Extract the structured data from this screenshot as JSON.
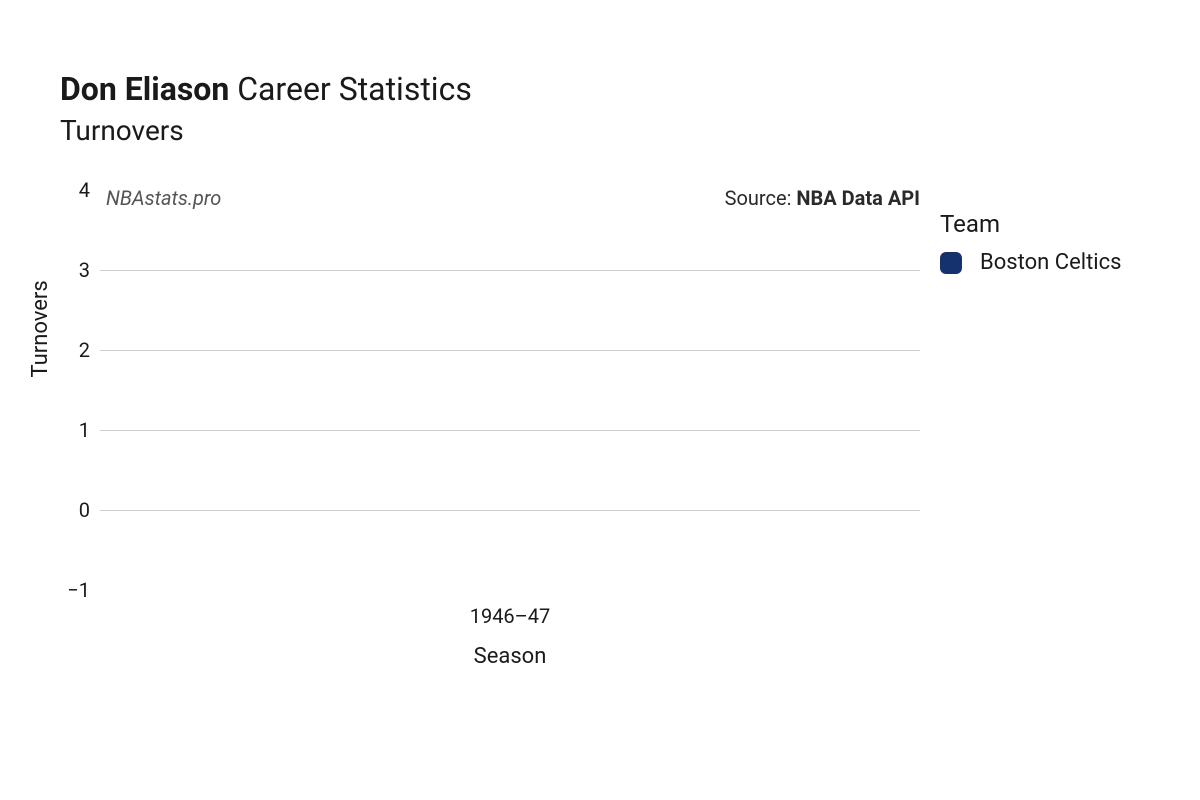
{
  "title": {
    "player_name": "Don Eliason",
    "suffix": "Career Statistics",
    "subtitle": "Turnovers",
    "fontsize_main": 32,
    "fontsize_sub": 28,
    "color": "#1a1a1a"
  },
  "chart": {
    "type": "bar",
    "watermark": "NBAstats.pro",
    "watermark_color": "#555555",
    "watermark_fontsize": 20,
    "watermark_italic": true,
    "source_prefix": "Source: ",
    "source_name": "NBA Data API",
    "source_fontsize": 20,
    "source_color": "#2a2a2a",
    "background_color": "#ffffff",
    "grid_color": "#cfcfcf",
    "axis_label_fontsize": 22,
    "tick_fontsize": 20,
    "y": {
      "label": "Turnovers",
      "min": -1,
      "max": 4,
      "ticks": [
        -1,
        0,
        1,
        2,
        3,
        4
      ],
      "tick_labels": [
        "−1",
        "0",
        "1",
        "2",
        "3",
        "4"
      ],
      "gridlines_at": [
        0,
        1,
        2,
        3
      ]
    },
    "x": {
      "label": "Season",
      "categories": [
        "1946–47"
      ]
    },
    "series": [
      {
        "season": "1946–47",
        "team": "Boston Celtics",
        "value": null
      }
    ]
  },
  "legend": {
    "title": "Team",
    "title_fontsize": 24,
    "item_fontsize": 22,
    "items": [
      {
        "label": "Boston Celtics",
        "color": "#15326f"
      }
    ],
    "swatch_radius": 6
  }
}
